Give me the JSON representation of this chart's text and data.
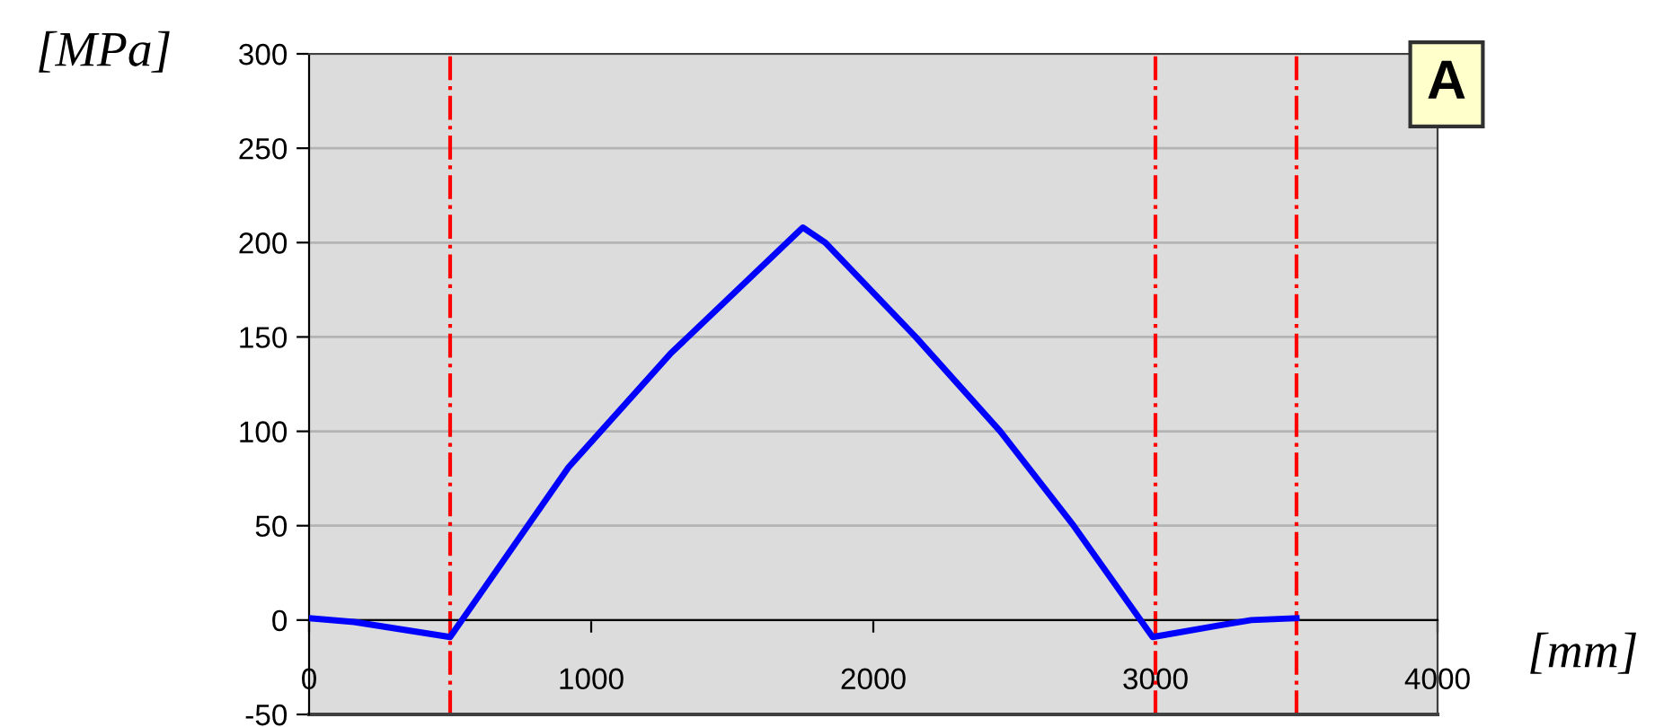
{
  "chart_data": {
    "type": "line",
    "xlabel": "[mm]",
    "ylabel": "[MPa]",
    "annotations": [
      "A"
    ],
    "x": [
      0,
      160,
      500,
      920,
      1280,
      1750,
      1830,
      2150,
      2450,
      2710,
      2990,
      3220,
      3340,
      3500
    ],
    "series": [
      {
        "color": "#0000ff",
        "values": [
          1,
          -1,
          -9,
          81,
          141,
          208,
          200,
          150,
          100,
          50,
          -9,
          -3,
          0,
          1
        ]
      }
    ],
    "xlim": [
      0,
      4000
    ],
    "xticks": [
      0,
      1000,
      2000,
      3000,
      4000
    ],
    "ylim": [
      -50,
      300
    ],
    "yticks": [
      -50,
      0,
      50,
      100,
      150,
      200,
      250,
      300
    ],
    "ref_lines": [
      {
        "axis": "x",
        "value": 500,
        "color": "#ff0000",
        "line_style": "dashdot"
      },
      {
        "axis": "x",
        "value": 3000,
        "color": "#ff0000",
        "line_style": "dashdot"
      },
      {
        "axis": "x",
        "value": 3500,
        "color": "#ff0000",
        "line_style": "dashdot"
      }
    ],
    "grid": "y",
    "legend": false,
    "marker": "none",
    "line_style": "solid"
  }
}
